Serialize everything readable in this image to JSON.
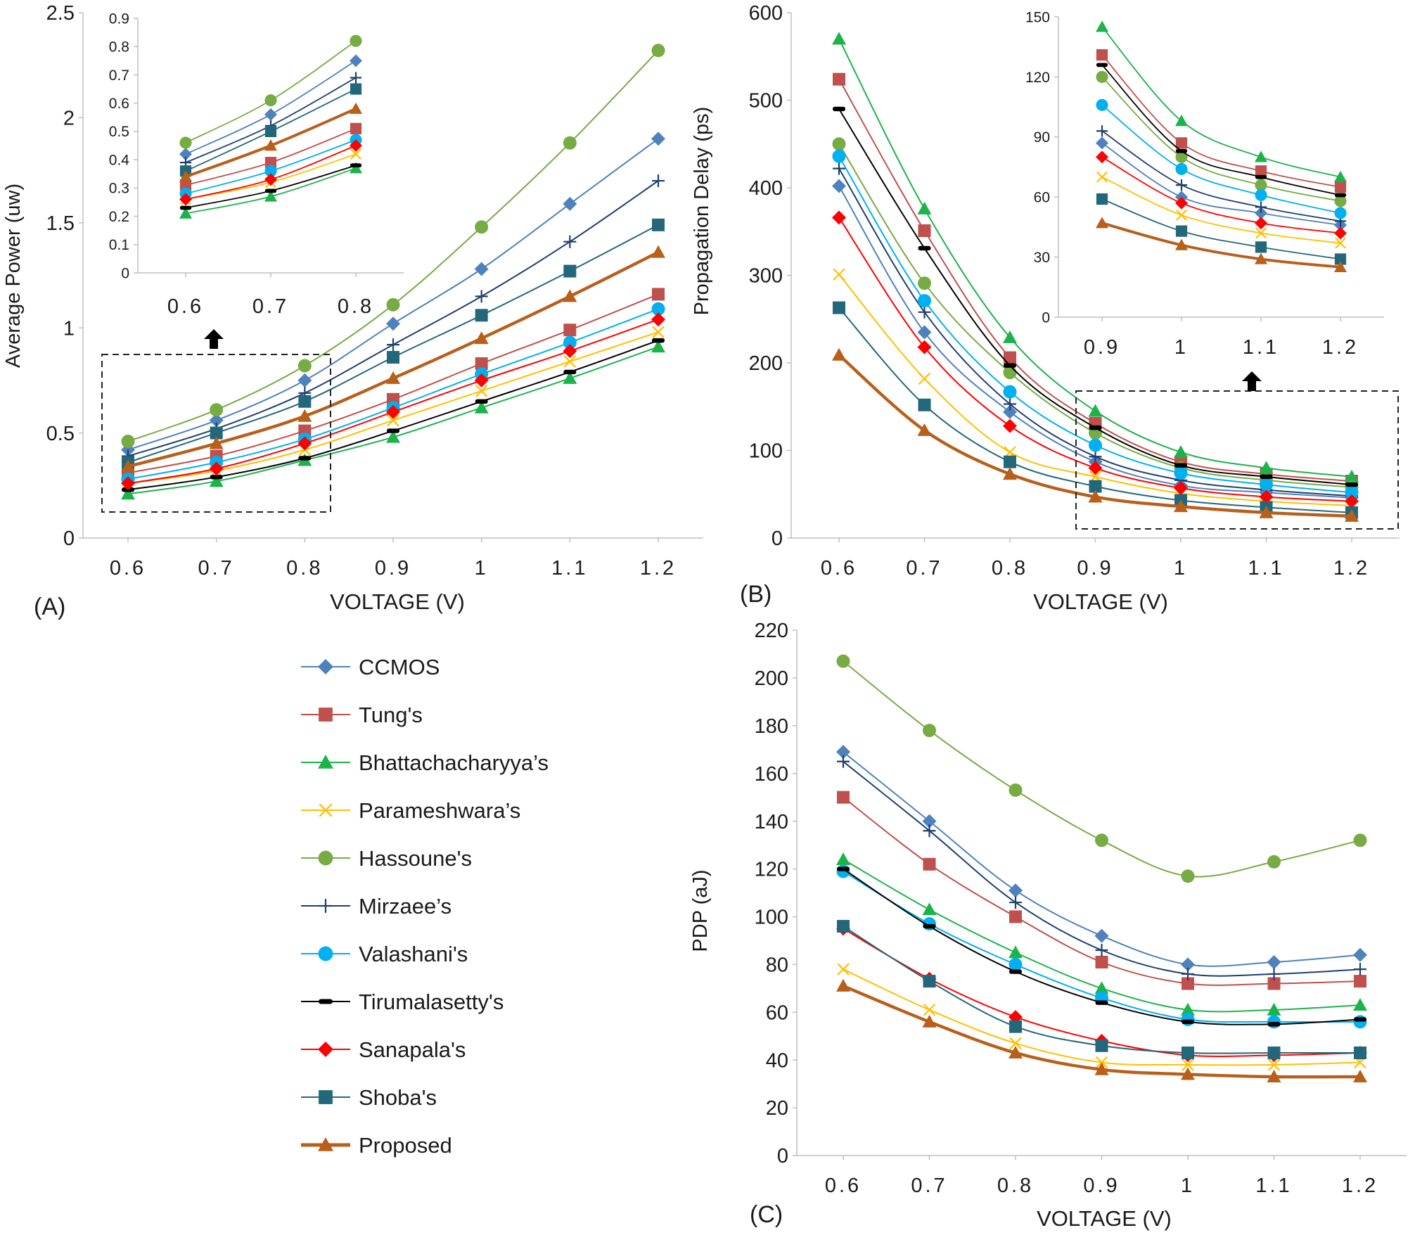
{
  "figure": {
    "panel_labels": [
      "(A)",
      "(B)",
      "(C)"
    ]
  },
  "series_styles": [
    {
      "name": "CCMOS",
      "color": "#4f81bd",
      "marker": "diamond"
    },
    {
      "name": "Tung's",
      "color": "#c0504d",
      "marker": "square"
    },
    {
      "name": "Bhattachacharyya’s",
      "color": "#1db34b",
      "marker": "triangle"
    },
    {
      "name": "Parameshwara’s",
      "color": "#ffc000",
      "marker": "x"
    },
    {
      "name": "Hassoune's",
      "color": "#77ab43",
      "marker": "circle"
    },
    {
      "name": "Mirzaee’s",
      "color": "#1f3f6e",
      "marker": "plus"
    },
    {
      "name": "Valashani's",
      "color": "#00b0f0",
      "marker": "circle"
    },
    {
      "name": "Tirumalasetty's",
      "color": "#000000",
      "marker": "dash"
    },
    {
      "name": "Sanapala's",
      "color": "#ff0000",
      "marker": "diamond"
    },
    {
      "name": "Shoba's",
      "color": "#23687a",
      "marker": "square"
    },
    {
      "name": "Proposed",
      "color": "#b85f1a",
      "marker": "triangle"
    }
  ],
  "chart_data": [
    {
      "id": "A",
      "type": "line",
      "title": "",
      "xlabel": "VOLTAGE (V)",
      "ylabel": "Average Power (uw)",
      "categories": [
        "0.6",
        "0.7",
        "0.8",
        "0.9",
        "1",
        "1.1",
        "1.2"
      ],
      "ylim": [
        0,
        2.5
      ],
      "yticks": [
        "0",
        "0.5",
        "1",
        "1.5",
        "2",
        "2.5"
      ],
      "series": [
        {
          "name": "CCMOS",
          "values": [
            0.42,
            0.56,
            0.75,
            1.02,
            1.28,
            1.59,
            1.9
          ]
        },
        {
          "name": "Tung's",
          "values": [
            0.31,
            0.39,
            0.51,
            0.66,
            0.83,
            0.99,
            1.16
          ]
        },
        {
          "name": "Bhattachacharyya’s",
          "values": [
            0.21,
            0.27,
            0.37,
            0.48,
            0.62,
            0.76,
            0.91
          ]
        },
        {
          "name": "Parameshwara’s",
          "values": [
            0.26,
            0.32,
            0.42,
            0.56,
            0.7,
            0.84,
            0.98
          ]
        },
        {
          "name": "Hassoune's",
          "values": [
            0.46,
            0.61,
            0.82,
            1.11,
            1.48,
            1.88,
            2.32
          ]
        },
        {
          "name": "Mirzaee’s",
          "values": [
            0.39,
            0.52,
            0.69,
            0.92,
            1.15,
            1.41,
            1.7
          ]
        },
        {
          "name": "Valashani's",
          "values": [
            0.28,
            0.36,
            0.47,
            0.62,
            0.78,
            0.93,
            1.09
          ]
        },
        {
          "name": "Tirumalasetty's",
          "values": [
            0.23,
            0.29,
            0.38,
            0.51,
            0.65,
            0.79,
            0.94
          ]
        },
        {
          "name": "Sanapala's",
          "values": [
            0.26,
            0.33,
            0.45,
            0.6,
            0.75,
            0.89,
            1.04
          ]
        },
        {
          "name": "Shoba's",
          "values": [
            0.36,
            0.5,
            0.65,
            0.86,
            1.06,
            1.27,
            1.49
          ]
        },
        {
          "name": "Proposed",
          "values": [
            0.34,
            0.45,
            0.58,
            0.76,
            0.95,
            1.15,
            1.36
          ]
        }
      ],
      "inset": {
        "categories": [
          "0.6",
          "0.7",
          "0.8"
        ],
        "ylim": [
          0,
          0.9
        ],
        "yticks": [
          "0",
          "0.1",
          "0.2",
          "0.3",
          "0.4",
          "0.5",
          "0.6",
          "0.7",
          "0.8",
          "0.9"
        ]
      }
    },
    {
      "id": "B",
      "type": "line",
      "title": "",
      "xlabel": "VOLTAGE (V)",
      "ylabel": "Propagation Delay (ps)",
      "categories": [
        "0.6",
        "0.7",
        "0.8",
        "0.9",
        "1",
        "1.1",
        "1.2"
      ],
      "ylim": [
        0,
        600
      ],
      "yticks": [
        "0",
        "100",
        "200",
        "300",
        "400",
        "500",
        "600"
      ],
      "series": [
        {
          "name": "CCMOS",
          "values": [
            402,
            235,
            144,
            87,
            60,
            52,
            46
          ]
        },
        {
          "name": "Tung's",
          "values": [
            524,
            351,
            206,
            131,
            87,
            73,
            65
          ]
        },
        {
          "name": "Bhattachacharyya’s",
          "values": [
            570,
            376,
            229,
            145,
            98,
            80,
            70
          ]
        },
        {
          "name": "Parameshwara’s",
          "values": [
            301,
            182,
            98,
            70,
            51,
            42,
            37
          ]
        },
        {
          "name": "Hassoune's",
          "values": [
            450,
            291,
            189,
            120,
            80,
            66,
            58
          ]
        },
        {
          "name": "Mirzaee’s",
          "values": [
            422,
            258,
            153,
            93,
            66,
            55,
            48
          ]
        },
        {
          "name": "Valashani's",
          "values": [
            436,
            271,
            167,
            106,
            74,
            61,
            52
          ]
        },
        {
          "name": "Tirumalasetty's",
          "values": [
            490,
            331,
            197,
            126,
            83,
            70,
            61
          ]
        },
        {
          "name": "Sanapala's",
          "values": [
            366,
            218,
            128,
            80,
            57,
            47,
            42
          ]
        },
        {
          "name": "Shoba's",
          "values": [
            263,
            152,
            87,
            59,
            43,
            35,
            29
          ]
        },
        {
          "name": "Proposed",
          "values": [
            209,
            123,
            73,
            47,
            36,
            29,
            25
          ]
        }
      ],
      "inset": {
        "categories": [
          "0.9",
          "1",
          "1.1",
          "1.2"
        ],
        "ylim": [
          0,
          150
        ],
        "yticks": [
          "0",
          "30",
          "60",
          "90",
          "120",
          "150"
        ]
      }
    },
    {
      "id": "C",
      "type": "line",
      "title": "",
      "xlabel": "VOLTAGE (V)",
      "ylabel": "PDP (aJ)",
      "categories": [
        "0.6",
        "0.7",
        "0.8",
        "0.9",
        "1",
        "1.1",
        "1.2"
      ],
      "ylim": [
        0,
        220
      ],
      "yticks": [
        "0",
        "20",
        "40",
        "60",
        "80",
        "100",
        "120",
        "140",
        "160",
        "180",
        "200",
        "220"
      ],
      "series": [
        {
          "name": "CCMOS",
          "values": [
            169,
            140,
            111,
            92,
            80,
            81,
            84
          ]
        },
        {
          "name": "Tung's",
          "values": [
            150,
            122,
            100,
            81,
            72,
            72,
            73
          ]
        },
        {
          "name": "Bhattachacharyya’s",
          "values": [
            124,
            103,
            85,
            70,
            61,
            61,
            63
          ]
        },
        {
          "name": "Parameshwara’s",
          "values": [
            78,
            61,
            47,
            39,
            38,
            38,
            39
          ]
        },
        {
          "name": "Hassoune's",
          "values": [
            207,
            178,
            153,
            132,
            117,
            123,
            132
          ]
        },
        {
          "name": "Mirzaee’s",
          "values": [
            165,
            136,
            106,
            86,
            76,
            76,
            78
          ]
        },
        {
          "name": "Valashani's",
          "values": [
            119,
            97,
            80,
            66,
            57,
            56,
            56
          ]
        },
        {
          "name": "Tirumalasetty's",
          "values": [
            120,
            96,
            77,
            64,
            56,
            55,
            57
          ]
        },
        {
          "name": "Sanapala's",
          "values": [
            95,
            74,
            58,
            48,
            42,
            42,
            43
          ]
        },
        {
          "name": "Shoba's",
          "values": [
            96,
            73,
            54,
            46,
            43,
            43,
            43
          ]
        },
        {
          "name": "Proposed",
          "values": [
            71,
            56,
            43,
            36,
            34,
            33,
            33
          ]
        }
      ]
    }
  ]
}
